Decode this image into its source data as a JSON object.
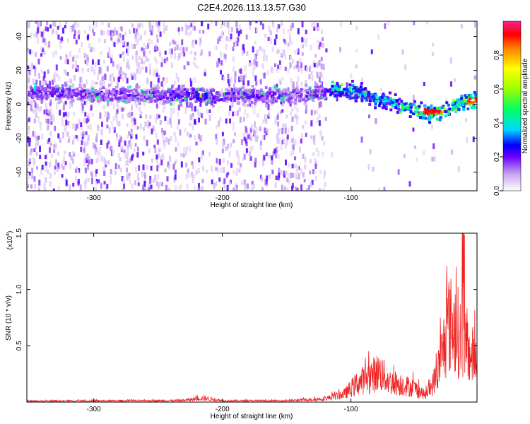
{
  "title": "C2E4.2026.113.13.57.G30",
  "colors": {
    "snr_line": "#ee2222",
    "axis": "#000000"
  },
  "chart_data": [
    {
      "type": "heatmap",
      "xlabel": "Height of straight line (km)",
      "ylabel": "Frequency (Hz)",
      "xlim": [
        -352,
        -2
      ],
      "ylim": [
        -51,
        49
      ],
      "x_ticks": [
        -300,
        -200,
        -100
      ],
      "x_tick_labels": [
        "-300",
        "-200",
        "-100"
      ],
      "y_ticks": [
        -40,
        -20,
        0,
        20,
        40
      ],
      "y_tick_labels": [
        "-40",
        "-20",
        "0",
        "20",
        "40"
      ],
      "colorbar": {
        "label": "Normalized spectral amplitude",
        "range": [
          0.0,
          1.0
        ],
        "ticks": [
          0.0,
          0.2,
          0.4,
          0.6,
          0.8
        ],
        "tick_labels": [
          "0.0",
          "0.2",
          "0.4",
          "0.6",
          "0.8"
        ]
      },
      "ridge": {
        "x": [
          -350,
          -300,
          -250,
          -200,
          -150,
          -120,
          -110,
          -100,
          -90,
          -80,
          -70,
          -60,
          -50,
          -40,
          -30,
          -20,
          -10,
          -2
        ],
        "y": [
          7,
          6,
          5,
          5,
          5,
          7,
          9,
          8,
          6,
          3,
          1,
          -1,
          -3,
          -5,
          -4,
          -1,
          2,
          2
        ]
      },
      "grid": false
    },
    {
      "type": "line",
      "xlabel": "Height of straight line (km)",
      "ylabel": "SNR (10 * v/v)",
      "y_multiplier": "(x10",
      "y_multiplier_exp": "4",
      "y_multiplier_close": ")",
      "xlim": [
        -352,
        -2
      ],
      "ylim": [
        0,
        1.5
      ],
      "x_ticks": [
        -300,
        -200,
        -100
      ],
      "x_tick_labels": [
        "-300",
        "-200",
        "-100"
      ],
      "y_ticks": [
        0.5,
        1.0,
        1.5
      ],
      "y_tick_labels": [
        "0.5",
        "1.0",
        "1.5"
      ],
      "envelope": {
        "x": [
          -352,
          -250,
          -230,
          -215,
          -200,
          -150,
          -120,
          -105,
          -95,
          -85,
          -78,
          -70,
          -60,
          -50,
          -42,
          -38,
          -33,
          -28,
          -24,
          -18,
          -14,
          -8,
          -2
        ],
        "y": [
          0.015,
          0.02,
          0.025,
          0.06,
          0.02,
          0.02,
          0.05,
          0.12,
          0.28,
          0.38,
          0.45,
          0.3,
          0.26,
          0.2,
          0.1,
          0.2,
          0.42,
          0.8,
          1.15,
          1.1,
          0.9,
          0.7,
          0.65
        ]
      },
      "grid": false
    }
  ]
}
